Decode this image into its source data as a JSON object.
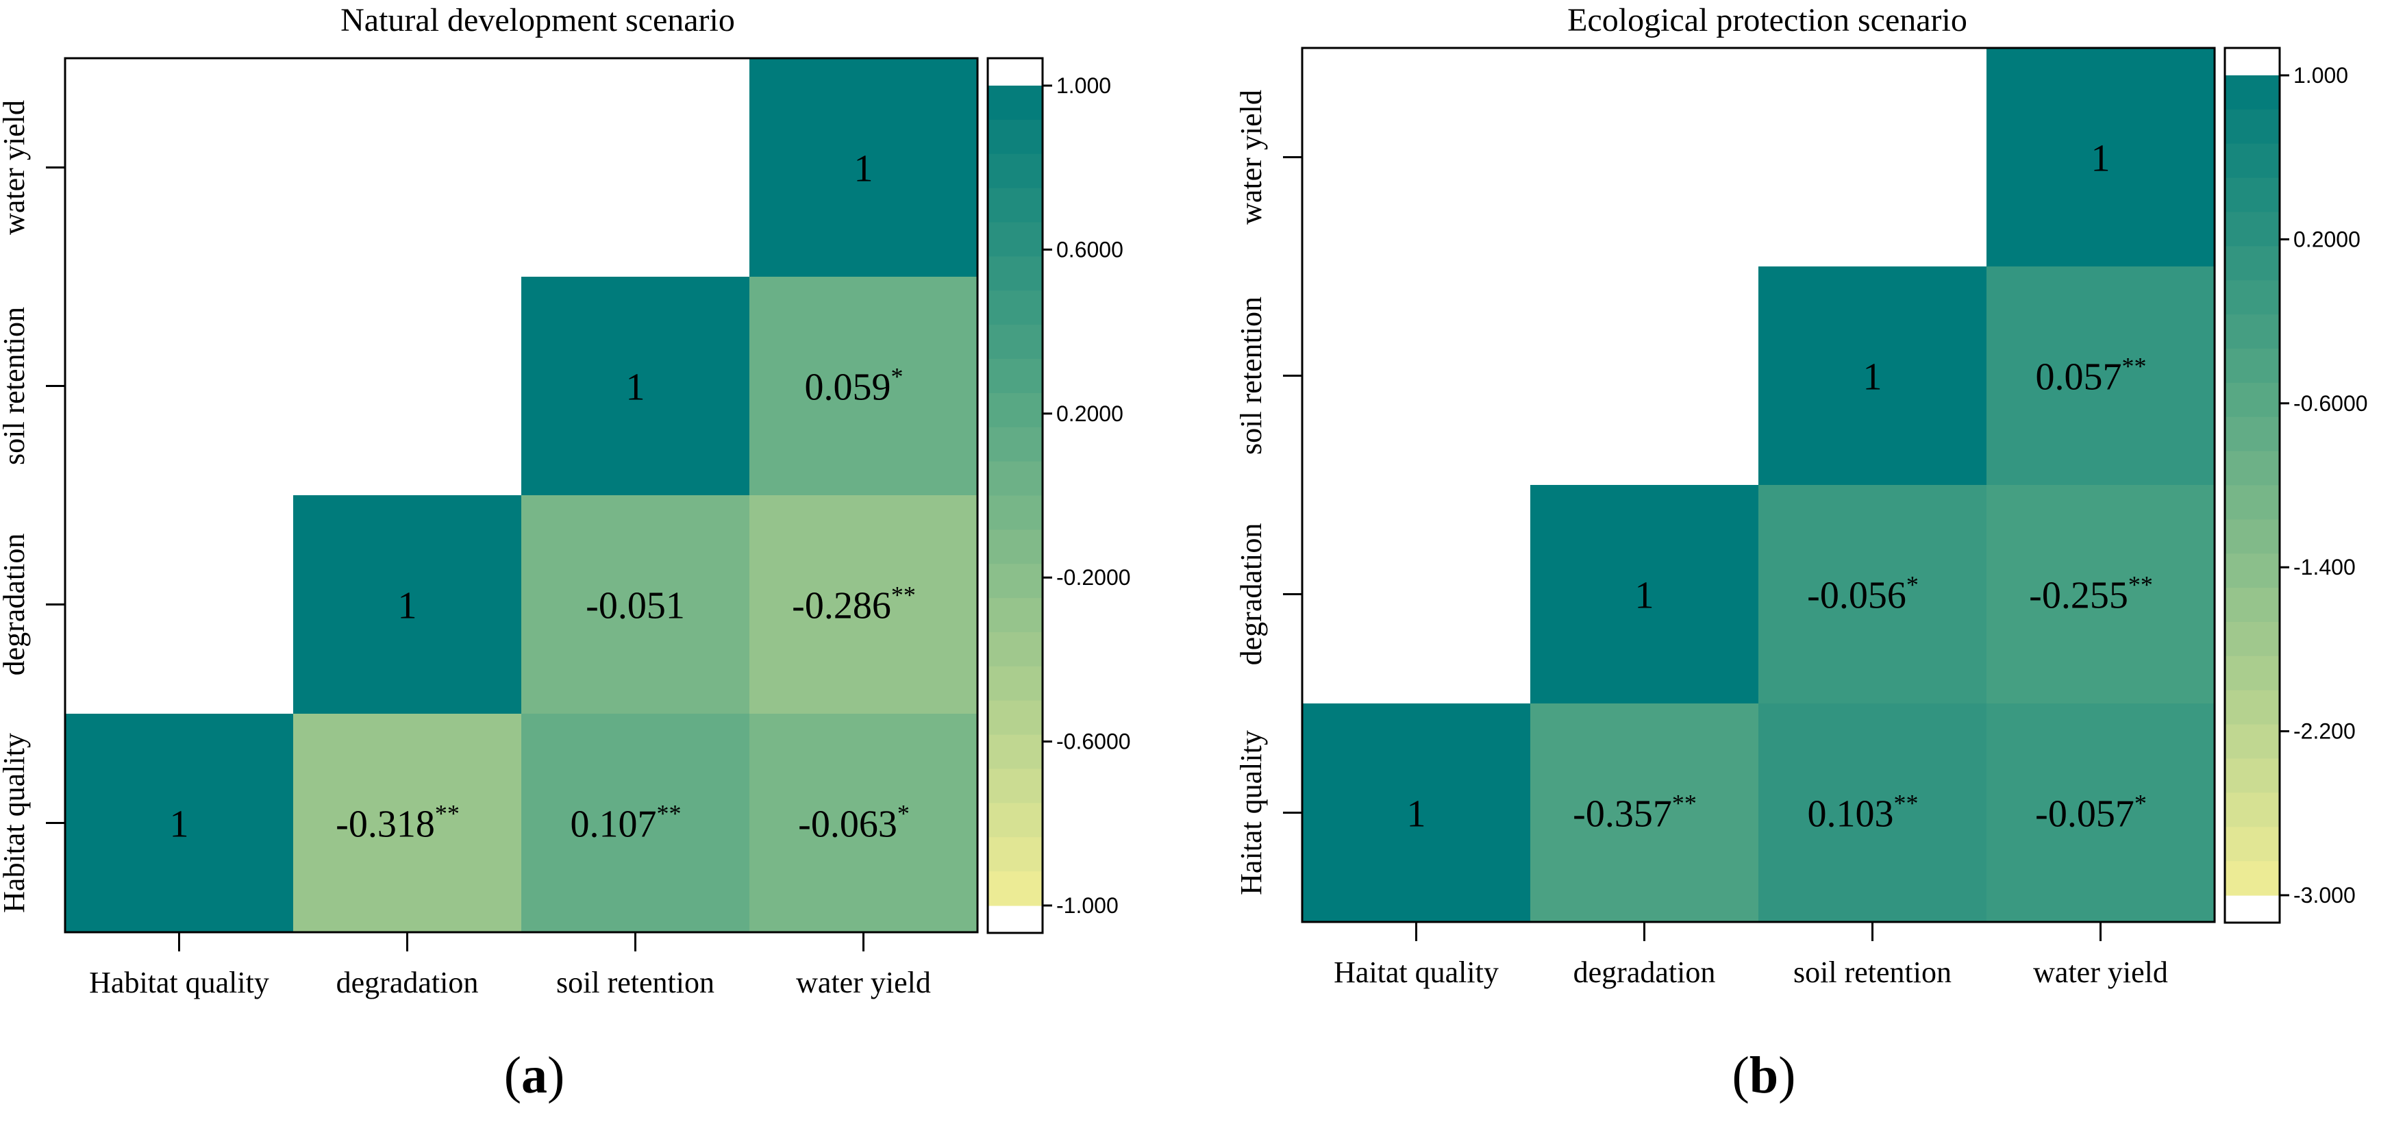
{
  "chart_data": [
    {
      "type": "heatmap",
      "panel_label": "(a)",
      "panel_letter": "a",
      "title": "Natural development scenario",
      "x_categories": [
        "Habitat quality",
        "degradation",
        "soil retention",
        "water yield"
      ],
      "y_categories": [
        "Habitat quality",
        "degradation",
        "soil retention",
        "water yield"
      ],
      "cells": [
        {
          "x": 0,
          "y": 0,
          "value": 1,
          "label": "1",
          "sig": ""
        },
        {
          "x": 1,
          "y": 0,
          "value": -0.318,
          "label": "-0.318",
          "sig": "**"
        },
        {
          "x": 2,
          "y": 0,
          "value": 0.107,
          "label": "0.107",
          "sig": "**"
        },
        {
          "x": 3,
          "y": 0,
          "value": -0.063,
          "label": "-0.063",
          "sig": "*"
        },
        {
          "x": 1,
          "y": 1,
          "value": 1,
          "label": "1",
          "sig": ""
        },
        {
          "x": 2,
          "y": 1,
          "value": -0.051,
          "label": "-0.051",
          "sig": ""
        },
        {
          "x": 3,
          "y": 1,
          "value": -0.286,
          "label": "-0.286",
          "sig": "**"
        },
        {
          "x": 2,
          "y": 2,
          "value": 1,
          "label": "1",
          "sig": ""
        },
        {
          "x": 3,
          "y": 2,
          "value": 0.059,
          "label": "0.059",
          "sig": "*"
        },
        {
          "x": 3,
          "y": 3,
          "value": 1,
          "label": "1",
          "sig": ""
        }
      ],
      "colorbar": {
        "min": -1.0,
        "max": 1.0,
        "ticks": [
          1.0,
          0.6,
          0.2,
          -0.2,
          -0.6,
          -1.0
        ],
        "tick_labels": [
          "1.000",
          "0.6000",
          "0.2000",
          "-0.2000",
          "-0.6000",
          "-1.000"
        ]
      },
      "colors": {
        "high": "#007b7b",
        "low": "#f2ee96"
      }
    },
    {
      "type": "heatmap",
      "panel_label": "(b)",
      "panel_letter": "b",
      "title": "Ecological protection scenario",
      "x_categories": [
        "Haitat quality",
        "degradation",
        "soil retention",
        "water yield"
      ],
      "y_categories": [
        "Haitat quality",
        "degradation",
        "soil retention",
        "water yield"
      ],
      "cells": [
        {
          "x": 0,
          "y": 0,
          "value": 1,
          "label": "1",
          "sig": ""
        },
        {
          "x": 1,
          "y": 0,
          "value": -0.357,
          "label": "-0.357",
          "sig": "**"
        },
        {
          "x": 2,
          "y": 0,
          "value": 0.103,
          "label": "0.103",
          "sig": "**"
        },
        {
          "x": 3,
          "y": 0,
          "value": -0.057,
          "label": "-0.057",
          "sig": "*"
        },
        {
          "x": 1,
          "y": 1,
          "value": 1,
          "label": "1",
          "sig": ""
        },
        {
          "x": 2,
          "y": 1,
          "value": -0.056,
          "label": "-0.056",
          "sig": "*"
        },
        {
          "x": 3,
          "y": 1,
          "value": -0.255,
          "label": "-0.255",
          "sig": "**"
        },
        {
          "x": 2,
          "y": 2,
          "value": 1,
          "label": "1",
          "sig": ""
        },
        {
          "x": 3,
          "y": 2,
          "value": 0.057,
          "label": "0.057",
          "sig": "**"
        },
        {
          "x": 3,
          "y": 3,
          "value": 1,
          "label": "1",
          "sig": ""
        }
      ],
      "colorbar": {
        "min": -3.0,
        "max": 1.0,
        "ticks": [
          1.0,
          0.2,
          -0.6,
          -1.4,
          -2.2,
          -3.0
        ],
        "tick_labels": [
          "1.000",
          "0.2000",
          "-0.6000",
          "-1.400",
          "-2.200",
          "-3.000"
        ]
      },
      "colors": {
        "high": "#007b7b",
        "low": "#f2ee96"
      }
    }
  ]
}
